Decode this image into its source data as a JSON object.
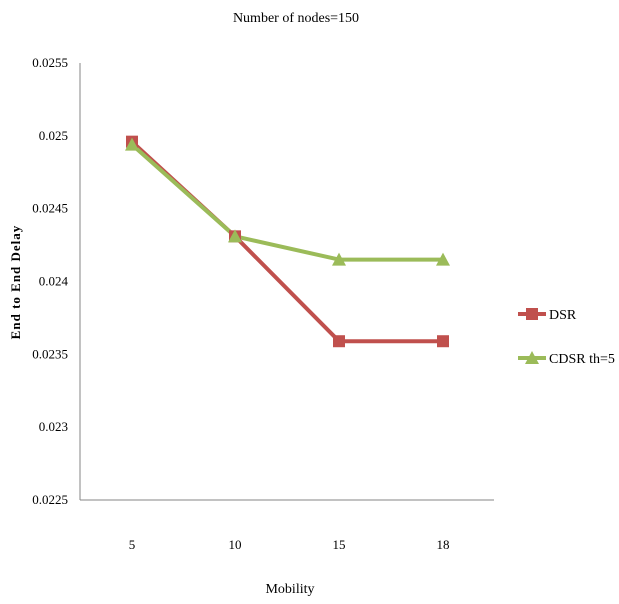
{
  "chart_data": {
    "type": "line",
    "title": "Number of nodes=150",
    "xlabel": "Mobility",
    "ylabel": "End to End Delay",
    "categories": [
      "5",
      "10",
      "15",
      "18"
    ],
    "ylim": [
      0.0225,
      0.0255
    ],
    "yticks": [
      "0.0225",
      "0.023",
      "0.0235",
      "0.024",
      "0.0245",
      "0.025",
      "0.0255"
    ],
    "grid": false,
    "legend_position": "right",
    "series": [
      {
        "name": "DSR",
        "color": "#c0504d",
        "marker": "square",
        "values": [
          0.02496,
          0.02431,
          0.02359,
          0.02359
        ]
      },
      {
        "name": "CDSR th=5",
        "color": "#9bbb59",
        "marker": "triangle",
        "values": [
          0.02494,
          0.02431,
          0.02415,
          0.02415
        ]
      }
    ]
  }
}
